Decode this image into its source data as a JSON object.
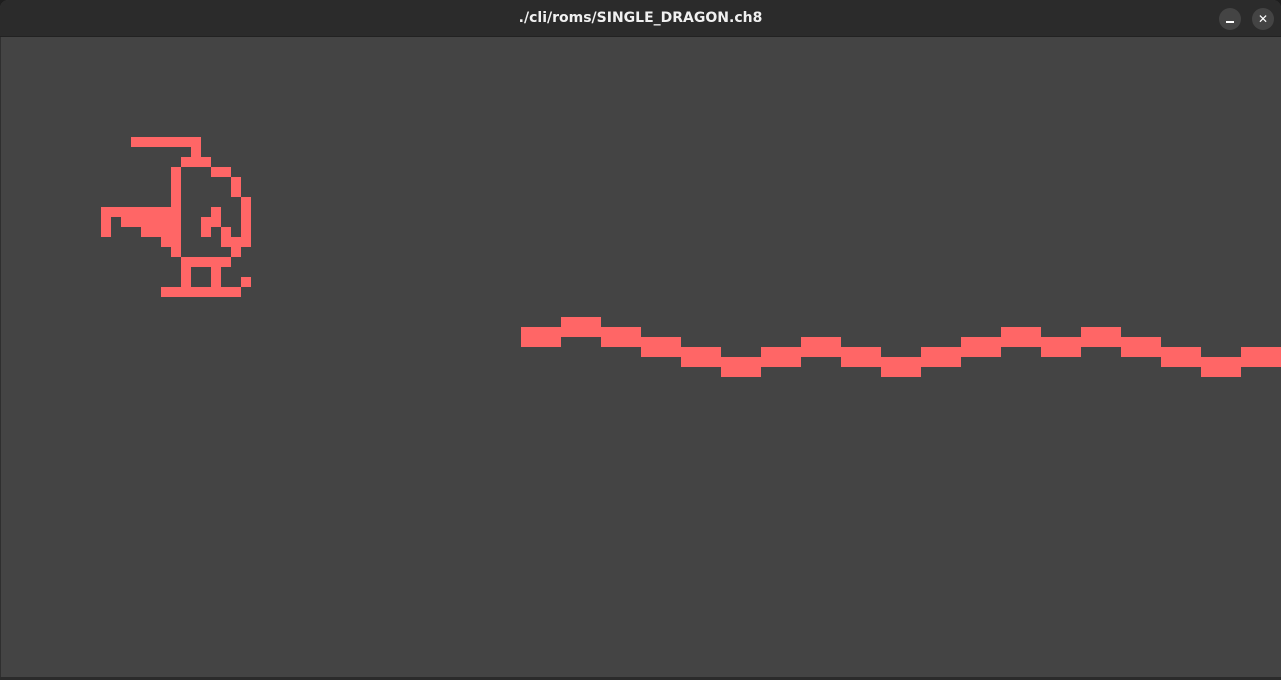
{
  "window": {
    "title": "./cli/roms/SINGLE_DRAGON.ch8",
    "minimize_icon": "minimize-icon",
    "close_icon": "close-icon",
    "close_glyph": "✕"
  },
  "display": {
    "columns": 128,
    "rows": 64,
    "foreground_color": "#ff6666",
    "background_color": "#444444",
    "pixels": [
      [
        13,
        10
      ],
      [
        14,
        10
      ],
      [
        15,
        10
      ],
      [
        16,
        10
      ],
      [
        17,
        10
      ],
      [
        18,
        10
      ],
      [
        19,
        10
      ],
      [
        19,
        11
      ],
      [
        18,
        12
      ],
      [
        19,
        12
      ],
      [
        20,
        12
      ],
      [
        17,
        13
      ],
      [
        21,
        13
      ],
      [
        22,
        13
      ],
      [
        17,
        14
      ],
      [
        23,
        14
      ],
      [
        17,
        15
      ],
      [
        23,
        15
      ],
      [
        17,
        16
      ],
      [
        24,
        16
      ],
      [
        10,
        17
      ],
      [
        11,
        17
      ],
      [
        12,
        17
      ],
      [
        13,
        17
      ],
      [
        14,
        17
      ],
      [
        15,
        17
      ],
      [
        16,
        17
      ],
      [
        17,
        17
      ],
      [
        21,
        17
      ],
      [
        24,
        17
      ],
      [
        10,
        18
      ],
      [
        12,
        18
      ],
      [
        13,
        18
      ],
      [
        14,
        18
      ],
      [
        15,
        18
      ],
      [
        16,
        18
      ],
      [
        17,
        18
      ],
      [
        20,
        18
      ],
      [
        21,
        18
      ],
      [
        24,
        18
      ],
      [
        10,
        19
      ],
      [
        14,
        19
      ],
      [
        15,
        19
      ],
      [
        16,
        19
      ],
      [
        17,
        19
      ],
      [
        20,
        19
      ],
      [
        22,
        19
      ],
      [
        24,
        19
      ],
      [
        16,
        20
      ],
      [
        17,
        20
      ],
      [
        22,
        20
      ],
      [
        23,
        20
      ],
      [
        24,
        20
      ],
      [
        17,
        21
      ],
      [
        23,
        21
      ],
      [
        18,
        22
      ],
      [
        19,
        22
      ],
      [
        20,
        22
      ],
      [
        21,
        22
      ],
      [
        22,
        22
      ],
      [
        18,
        23
      ],
      [
        21,
        23
      ],
      [
        18,
        24
      ],
      [
        21,
        24
      ],
      [
        24,
        24
      ],
      [
        16,
        25
      ],
      [
        17,
        25
      ],
      [
        18,
        25
      ],
      [
        19,
        25
      ],
      [
        20,
        25
      ],
      [
        21,
        25
      ],
      [
        22,
        25
      ],
      [
        23,
        25
      ]
    ],
    "wave_segments": [
      [
        52,
        29
      ],
      [
        54,
        29
      ],
      [
        56,
        28
      ],
      [
        58,
        28
      ],
      [
        60,
        29
      ],
      [
        62,
        29
      ],
      [
        64,
        30
      ],
      [
        66,
        30
      ],
      [
        68,
        31
      ],
      [
        70,
        31
      ],
      [
        72,
        32
      ],
      [
        74,
        32
      ],
      [
        76,
        31
      ],
      [
        78,
        31
      ],
      [
        80,
        30
      ],
      [
        82,
        30
      ],
      [
        84,
        31
      ],
      [
        86,
        31
      ],
      [
        88,
        32
      ],
      [
        90,
        32
      ],
      [
        92,
        31
      ],
      [
        94,
        31
      ],
      [
        96,
        30
      ],
      [
        98,
        30
      ],
      [
        100,
        29
      ],
      [
        102,
        29
      ],
      [
        104,
        30
      ],
      [
        106,
        30
      ],
      [
        108,
        29
      ],
      [
        110,
        29
      ],
      [
        112,
        30
      ],
      [
        114,
        30
      ],
      [
        116,
        31
      ],
      [
        118,
        31
      ],
      [
        120,
        32
      ],
      [
        122,
        32
      ],
      [
        124,
        31
      ],
      [
        126,
        31
      ]
    ]
  }
}
